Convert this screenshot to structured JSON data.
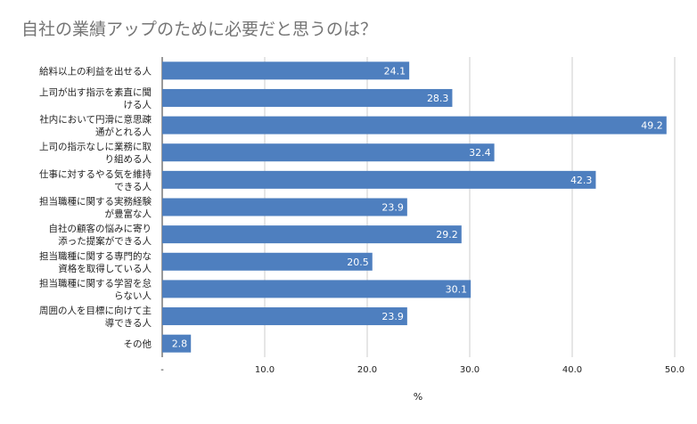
{
  "chart_data": {
    "type": "bar",
    "orientation": "horizontal",
    "title": "自社の業績アップのために必要だと思うのは？",
    "xlabel": "%",
    "ylabel": "",
    "xlim": [
      0,
      50
    ],
    "x_ticks": [
      "-",
      "10.0",
      "20.0",
      "30.0",
      "40.0",
      "50.0"
    ],
    "grid": true,
    "bar_color": "#4e7fbf",
    "categories": [
      [
        "給料以上の利益を出せる人"
      ],
      [
        "上司が出す指示を素直に聞",
        "ける人"
      ],
      [
        "社内において円滑に意思疎",
        "通がとれる人"
      ],
      [
        "上司の指示なしに業務に取",
        "り組める人"
      ],
      [
        "仕事に対するやる気を維持",
        "できる人"
      ],
      [
        "担当職種に関する実務経験",
        "が豊富な人"
      ],
      [
        "自社の顧客の悩みに寄り",
        "添った提案ができる人"
      ],
      [
        "担当職種に関する専門的な",
        "資格を取得している人"
      ],
      [
        "担当職種に関する学習を怠",
        "らない人"
      ],
      [
        "周囲の人を目標に向けて主",
        "導できる人"
      ],
      [
        "その他"
      ]
    ],
    "values": [
      24.1,
      28.3,
      49.2,
      32.4,
      42.3,
      23.9,
      29.2,
      20.5,
      30.1,
      23.9,
      2.8
    ],
    "value_labels": [
      "24.1",
      "28.3",
      "49.2",
      "32.4",
      "42.3",
      "23.9",
      "29.2",
      "20.5",
      "30.1",
      "23.9",
      "2.8"
    ]
  }
}
